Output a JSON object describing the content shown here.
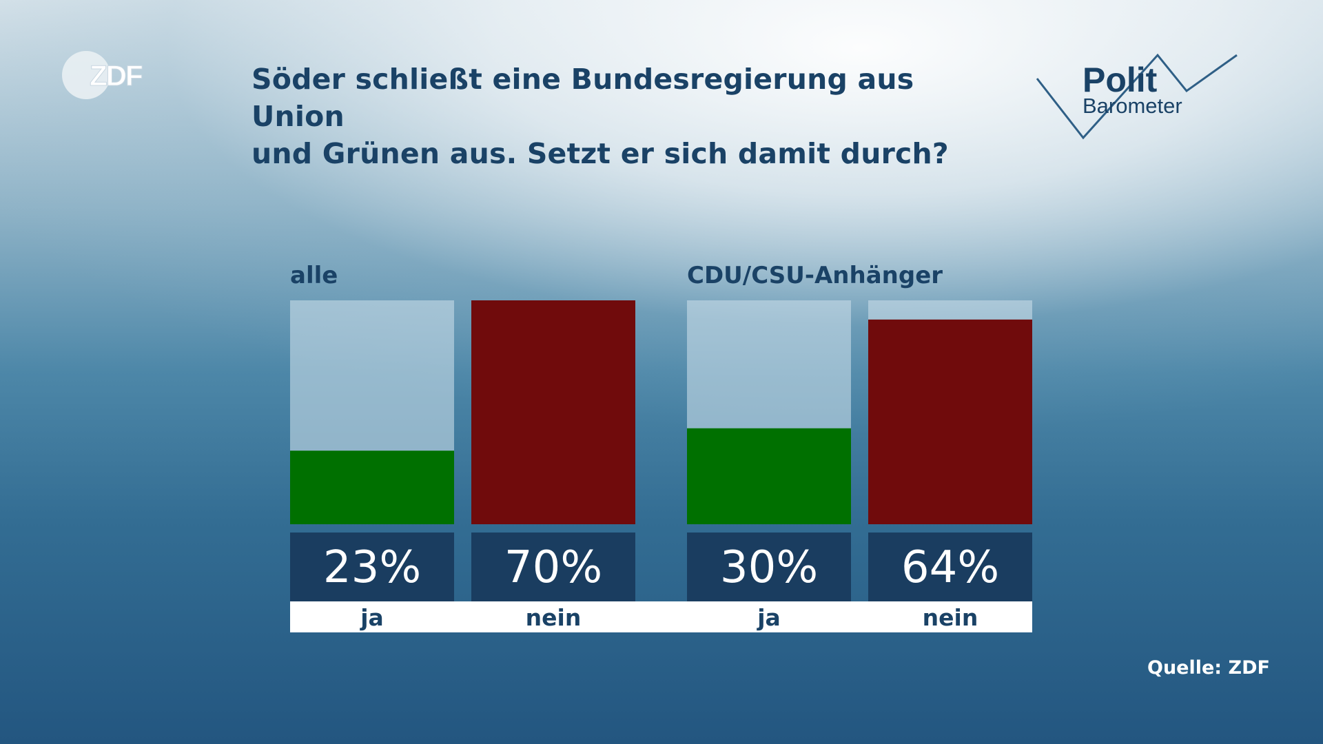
{
  "header": {
    "title": "Söder schließt eine Bundesregierung aus Union\nund Grünen aus. Setzt er sich damit durch?",
    "zdf_logo": "ZDF",
    "polit_barometer": {
      "line1": "Polit",
      "line2": "Barometer"
    }
  },
  "colors": {
    "ja": "#007000",
    "nein": "#700b0c",
    "track": "rgba(200,220,232,0.6)",
    "value_box": "#1a3d60",
    "label_strip": "#ffffff",
    "text_dark": "#1a4266"
  },
  "chart_data": {
    "type": "bar",
    "title": "Söder schließt eine Bundesregierung aus Union und Grünen aus. Setzt er sich damit durch?",
    "ylim": [
      0,
      70
    ],
    "value_suffix": "%",
    "groups": [
      {
        "name": "alle",
        "bars": [
          {
            "label": "ja",
            "value": 23,
            "color": "#007000"
          },
          {
            "label": "nein",
            "value": 70,
            "color": "#700b0c"
          }
        ]
      },
      {
        "name": "CDU/CSU-Anhänger",
        "bars": [
          {
            "label": "ja",
            "value": 30,
            "color": "#007000"
          },
          {
            "label": "nein",
            "value": 64,
            "color": "#700b0c"
          }
        ]
      }
    ]
  },
  "footer": {
    "source": "Quelle: ZDF"
  }
}
